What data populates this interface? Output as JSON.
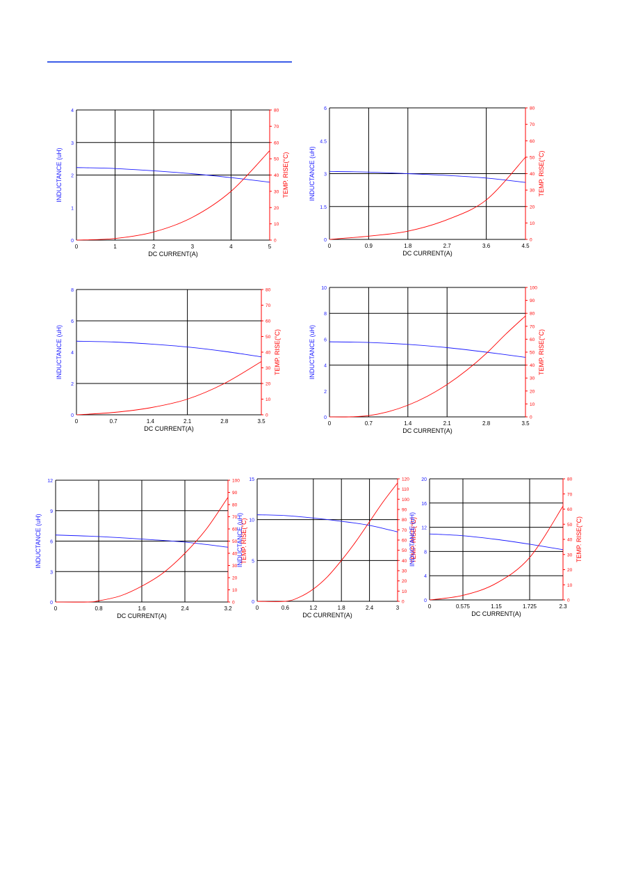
{
  "page": {
    "header_rule_color": "#3b5ce8"
  },
  "colors": {
    "inductance": "#1a1aff",
    "temp": "#ff0000",
    "grid": "#000000",
    "label": "#000000"
  },
  "chart_data": [
    {
      "type": "line",
      "xlabel": "DC CURRENT(A)",
      "ylabel_left": "INDUCTANCE (uH)",
      "ylabel_right": "TEMP. RISE(°C)",
      "x_ticks": [
        "0",
        "1",
        "2",
        "3",
        "4",
        "5"
      ],
      "xlim": [
        0,
        5
      ],
      "left_ticks": [
        "0",
        "1",
        "2",
        "3",
        "4"
      ],
      "ylim_left": [
        0,
        4
      ],
      "right_ticks": [
        "0",
        "10",
        "20",
        "30",
        "40",
        "50",
        "60",
        "70",
        "80"
      ],
      "ylim_right": [
        0,
        80
      ],
      "grid_x": [
        1,
        2,
        4
      ],
      "grid_y_left": [
        2,
        3
      ],
      "series": [
        {
          "axis": "left",
          "x": [
            0,
            1,
            2,
            3,
            4,
            5
          ],
          "values": [
            2.23,
            2.2,
            2.13,
            2.04,
            1.92,
            1.78
          ]
        },
        {
          "axis": "right",
          "x": [
            0,
            1,
            2,
            3,
            4,
            5
          ],
          "values": [
            0,
            1,
            5,
            14,
            30,
            55
          ]
        }
      ]
    },
    {
      "type": "line",
      "xlabel": "DC CURRENT(A)",
      "ylabel_left": "INDUCTANCE (uH)",
      "ylabel_right": "TEMP. RISE(°C)",
      "x_ticks": [
        "0",
        "0.9",
        "1.8",
        "2.7",
        "3.6",
        "4.5"
      ],
      "xlim": [
        0,
        4.5
      ],
      "left_ticks": [
        "0",
        "1.5",
        "3",
        "4.5",
        "6"
      ],
      "ylim_left": [
        0,
        6
      ],
      "right_ticks": [
        "0",
        "10",
        "20",
        "30",
        "40",
        "50",
        "60",
        "70",
        "80"
      ],
      "ylim_right": [
        0,
        80
      ],
      "grid_x": [
        0.9,
        1.8,
        3.6
      ],
      "grid_y_left": [
        1.5,
        3
      ],
      "series": [
        {
          "axis": "left",
          "x": [
            0,
            0.9,
            1.8,
            2.7,
            3.6,
            4.5
          ],
          "values": [
            3.1,
            3.07,
            3.0,
            2.92,
            2.8,
            2.6
          ]
        },
        {
          "axis": "right",
          "x": [
            0,
            0.9,
            1.8,
            2.7,
            3.6,
            4.5
          ],
          "values": [
            0,
            2,
            5,
            12,
            24,
            50
          ]
        }
      ]
    },
    {
      "type": "line",
      "xlabel": "DC CURRENT(A)",
      "ylabel_left": "INDUCTANCE (uH)",
      "ylabel_right": "TEMP. RISE(°C)",
      "x_ticks": [
        "0",
        "0.7",
        "1.4",
        "2.1",
        "2.8",
        "3.5"
      ],
      "xlim": [
        0,
        3.5
      ],
      "left_ticks": [
        "0",
        "2",
        "4",
        "6",
        "8"
      ],
      "ylim_left": [
        0,
        8
      ],
      "right_ticks": [
        "0",
        "10",
        "20",
        "30",
        "40",
        "50",
        "60",
        "70",
        "80"
      ],
      "ylim_right": [
        0,
        80
      ],
      "grid_x": [
        2.1
      ],
      "grid_y_left": [
        2,
        6
      ],
      "series": [
        {
          "axis": "left",
          "x": [
            0,
            0.7,
            1.4,
            2.1,
            2.8,
            3.5
          ],
          "values": [
            4.7,
            4.65,
            4.52,
            4.33,
            4.05,
            3.7
          ]
        },
        {
          "axis": "right",
          "x": [
            0,
            0.7,
            1.4,
            2.1,
            2.8,
            3.5
          ],
          "values": [
            0,
            1.5,
            4.5,
            10,
            20,
            34
          ]
        }
      ]
    },
    {
      "type": "line",
      "xlabel": "DC CURRENT(A)",
      "ylabel_left": "INDUCTANCE (uH)",
      "ylabel_right": "TEMP. RISE(°C)",
      "x_ticks": [
        "0",
        "0.7",
        "1.4",
        "2.1",
        "2.8",
        "3.5"
      ],
      "xlim": [
        0,
        3.5
      ],
      "left_ticks": [
        "0",
        "2",
        "4",
        "6",
        "8",
        "10"
      ],
      "ylim_left": [
        0,
        10
      ],
      "right_ticks": [
        "0",
        "10",
        "20",
        "30",
        "40",
        "50",
        "60",
        "70",
        "80",
        "90",
        "100"
      ],
      "ylim_right": [
        0,
        100
      ],
      "grid_x": [
        0.7,
        1.4,
        2.1
      ],
      "grid_y_left": [
        4,
        8
      ],
      "series": [
        {
          "axis": "left",
          "x": [
            0,
            0.7,
            1.4,
            2.1,
            2.8,
            3.5
          ],
          "values": [
            5.8,
            5.75,
            5.6,
            5.35,
            5.0,
            4.6
          ]
        },
        {
          "axis": "right",
          "x": [
            0,
            0.35,
            0.7,
            1.05,
            1.4,
            1.75,
            2.1,
            2.45,
            2.8,
            3.15,
            3.5
          ],
          "values": [
            0,
            0,
            1,
            4,
            9,
            16,
            25,
            36,
            49,
            64,
            78
          ]
        }
      ]
    },
    {
      "type": "line",
      "xlabel": "DC CURRENT(A)",
      "ylabel_left": "INDUCTANCE (uH)",
      "ylabel_right": "TEMP. RISE(°C)",
      "x_ticks": [
        "0",
        "0.8",
        "1.6",
        "2.4",
        "3.2"
      ],
      "xlim": [
        0,
        3.2
      ],
      "left_ticks": [
        "0",
        "3",
        "6",
        "9",
        "12"
      ],
      "ylim_left": [
        0,
        12
      ],
      "right_ticks": [
        "0",
        "10",
        "20",
        "30",
        "40",
        "50",
        "60",
        "70",
        "80",
        "90",
        "100"
      ],
      "ylim_right": [
        0,
        100
      ],
      "grid_x": [
        0.8,
        1.6,
        2.4
      ],
      "grid_y_left": [
        3,
        6,
        9
      ],
      "series": [
        {
          "axis": "left",
          "x": [
            0,
            0.8,
            1.6,
            2.4,
            3.2
          ],
          "values": [
            6.6,
            6.45,
            6.2,
            5.9,
            5.4
          ]
        },
        {
          "axis": "right",
          "x": [
            0,
            0.6,
            0.8,
            1.2,
            1.6,
            2.0,
            2.4,
            2.8,
            3.2
          ],
          "values": [
            0,
            0,
            1,
            5,
            13,
            24,
            40,
            60,
            86
          ]
        }
      ]
    },
    {
      "type": "line",
      "xlabel": "DC CURRENT(A)",
      "ylabel_left": "INDUCTANCE (uH)",
      "ylabel_right": "TEMP. RISE(°C)",
      "x_ticks": [
        "0",
        "0.6",
        "1.2",
        "1.8",
        "2.4",
        "3"
      ],
      "xlim": [
        0,
        3
      ],
      "left_ticks": [
        "0",
        "5",
        "10",
        "15"
      ],
      "ylim_left": [
        0,
        15
      ],
      "right_ticks": [
        "0",
        "10",
        "20",
        "30",
        "40",
        "50",
        "60",
        "70",
        "80",
        "90",
        "100",
        "110",
        "120"
      ],
      "ylim_right": [
        0,
        120
      ],
      "grid_x": [
        1.2,
        1.8,
        2.4
      ],
      "grid_y_left": [
        5,
        10
      ],
      "series": [
        {
          "axis": "left",
          "x": [
            0,
            0.6,
            1.2,
            1.8,
            2.4,
            3
          ],
          "values": [
            10.6,
            10.5,
            10.2,
            9.8,
            9.3,
            8.5
          ]
        },
        {
          "axis": "right",
          "x": [
            0,
            0.6,
            0.9,
            1.2,
            1.5,
            1.8,
            2.1,
            2.4,
            2.7,
            3
          ],
          "values": [
            0,
            0,
            4,
            12,
            24,
            40,
            58,
            78,
            98,
            116
          ]
        }
      ]
    },
    {
      "type": "line",
      "xlabel": "DC CURRENT(A)",
      "ylabel_left": "INDUCTANCE (uH)",
      "ylabel_right": "TEMP. RISE(°C)",
      "x_ticks": [
        "0",
        "0.575",
        "1.15",
        "1.725",
        "2.3"
      ],
      "xlim": [
        0,
        2.3
      ],
      "left_ticks": [
        "0",
        "4",
        "8",
        "12",
        "16",
        "20"
      ],
      "ylim_left": [
        0,
        20
      ],
      "right_ticks": [
        "0",
        "10",
        "20",
        "30",
        "40",
        "50",
        "60",
        "70",
        "80"
      ],
      "ylim_right": [
        0,
        80
      ],
      "grid_x": [
        0.575,
        1.725
      ],
      "grid_y_left": [
        4,
        8,
        12,
        16
      ],
      "series": [
        {
          "axis": "left",
          "x": [
            0,
            0.575,
            1.15,
            1.725,
            2.3
          ],
          "values": [
            10.9,
            10.6,
            10.0,
            9.2,
            8.3
          ]
        },
        {
          "axis": "right",
          "x": [
            0,
            0.575,
            1.15,
            1.725,
            2.3
          ],
          "values": [
            0,
            3,
            11,
            28,
            62
          ]
        }
      ]
    }
  ]
}
